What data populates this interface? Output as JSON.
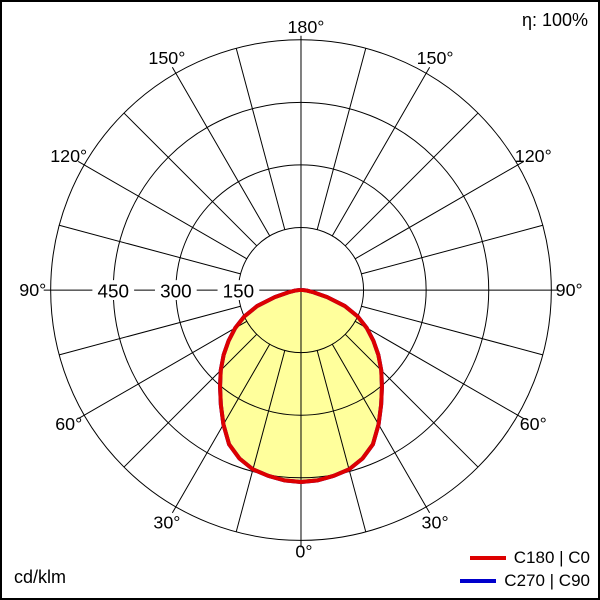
{
  "header": {
    "efficiency_label": "η: 100%"
  },
  "footer": {
    "unit_label": "cd/klm"
  },
  "legend": {
    "items": [
      {
        "label": "C180 | C0",
        "color": "#dd0000"
      },
      {
        "label": "C270 | C90",
        "color": "#0000cc"
      }
    ]
  },
  "chart_data": {
    "type": "polar-photometric",
    "unit": "cd/klm",
    "efficiency": "η: 100%",
    "radial_range": [
      0,
      600
    ],
    "radial_ticks": [
      150,
      300,
      450
    ],
    "radial_tick_labels": [
      "150",
      "300",
      "450"
    ],
    "angle_ticks": [
      {
        "label": "0°",
        "gamma": 0
      },
      {
        "label": "30°",
        "gamma": 30
      },
      {
        "label": "60°",
        "gamma": 60
      },
      {
        "label": "90°",
        "gamma": 90
      },
      {
        "label": "120°",
        "gamma": 120
      },
      {
        "label": "150°",
        "gamma": 150
      },
      {
        "label": "180°",
        "gamma": 180
      }
    ],
    "grid": {
      "angle_step_deg": 15,
      "major_angle_step_deg": 30,
      "color": "#000000"
    },
    "fill_color": "#ffff9c",
    "series": [
      {
        "name": "C180 | C0",
        "color": "#dd0000",
        "gamma_deg": [
          0,
          5,
          10,
          15,
          20,
          25,
          30,
          35,
          40,
          45,
          50,
          55,
          60,
          65,
          70,
          75,
          80,
          85,
          90
        ],
        "values_cd_klm": [
          460,
          458,
          452,
          445,
          430,
          408,
          372,
          335,
          302,
          272,
          242,
          212,
          182,
          150,
          112,
          65,
          30,
          14,
          5
        ]
      },
      {
        "name": "C270 | C90",
        "color": "#0000cc",
        "gamma_deg": [
          0,
          5,
          10,
          15,
          20,
          25,
          30,
          35,
          40,
          45,
          50,
          55,
          60,
          65,
          70,
          75,
          80,
          85,
          90
        ],
        "values_cd_klm": [
          460,
          458,
          452,
          445,
          430,
          408,
          372,
          335,
          302,
          272,
          242,
          212,
          182,
          150,
          112,
          65,
          30,
          14,
          5
        ]
      }
    ]
  }
}
